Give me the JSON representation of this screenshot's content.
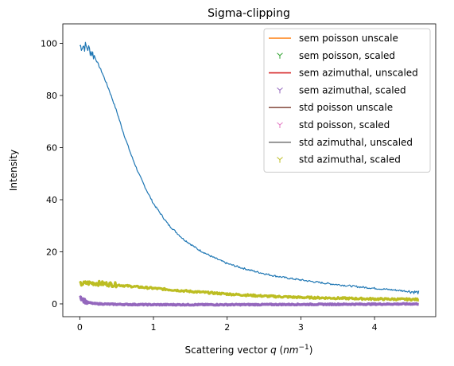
{
  "chart_data": {
    "type": "line",
    "title": "Sigma-clipping",
    "xlabel": "Scattering vector q (nm⁻¹)",
    "xlabel_parts": {
      "prefix": "Scattering vector ",
      "var": "q",
      "unit_open": " (",
      "unit": "nm",
      "unit_exp": "−1",
      "unit_close": ")"
    },
    "ylabel": "Intensity",
    "xlim": [
      -0.23,
      4.83
    ],
    "ylim": [
      -4.9,
      107.5
    ],
    "xticks": [
      0,
      1,
      2,
      3,
      4
    ],
    "xtick_labels": [
      "0",
      "1",
      "2",
      "3",
      "4"
    ],
    "yticks": [
      0,
      20,
      40,
      60,
      80,
      100
    ],
    "ytick_labels": [
      "0",
      "20",
      "40",
      "60",
      "80",
      "100"
    ],
    "grid": false,
    "legend_position": "top-right",
    "legend": [
      {
        "label": "sem poisson unscale",
        "color": "#ff7f0e",
        "marker": "line"
      },
      {
        "label": "sem poisson, scaled",
        "color": "#2ca02c",
        "marker": "tri_down"
      },
      {
        "label": "sem azimuthal, unscaled",
        "color": "#d62728",
        "marker": "line"
      },
      {
        "label": "sem azimuthal, scaled",
        "color": "#9467bd",
        "marker": "tri_down"
      },
      {
        "label": "std poisson unscale",
        "color": "#8c564b",
        "marker": "line"
      },
      {
        "label": "std poisson, scaled",
        "color": "#e377c2",
        "marker": "tri_down"
      },
      {
        "label": "std azimuthal, unscaled",
        "color": "#7f7f7f",
        "marker": "line"
      },
      {
        "label": "std azimuthal, scaled",
        "color": "#bcbd22",
        "marker": "tri_down"
      }
    ],
    "series": [
      {
        "color": "#1f77b4",
        "x": [
          0.0,
          0.05,
          0.1,
          0.15,
          0.2,
          0.3,
          0.4,
          0.5,
          0.6,
          0.7,
          0.8,
          0.9,
          1.0,
          1.2,
          1.4,
          1.6,
          1.8,
          2.0,
          2.2,
          2.4,
          2.6,
          2.8,
          3.0,
          3.2,
          3.4,
          3.6,
          3.8,
          4.0,
          4.2,
          4.4,
          4.6
        ],
        "y": [
          99,
          99,
          98.5,
          97,
          95,
          89,
          82,
          74,
          65,
          57,
          50,
          44,
          38.5,
          30.5,
          25,
          21,
          18,
          15.5,
          13.8,
          12.3,
          11,
          10,
          9.2,
          8.4,
          7.7,
          7.1,
          6.5,
          6.0,
          5.5,
          5.0,
          4.4
        ]
      },
      {
        "color": "#bcbd22",
        "x": [
          0.0,
          0.1,
          0.2,
          0.4,
          0.6,
          0.8,
          1.0,
          1.5,
          2.0,
          2.5,
          3.0,
          3.5,
          4.0,
          4.6
        ],
        "y": [
          7.5,
          8.0,
          8.0,
          7.6,
          7.0,
          6.5,
          6.0,
          4.8,
          3.8,
          3.0,
          2.5,
          2.2,
          1.9,
          1.7
        ]
      },
      {
        "color": "#9467bd",
        "x": [
          0.0,
          0.05,
          0.1,
          0.2,
          0.4,
          0.6,
          1.0,
          1.5,
          2.0,
          3.0,
          4.0,
          4.6
        ],
        "y": [
          3.0,
          1.5,
          0.6,
          0.1,
          -0.1,
          -0.2,
          -0.3,
          -0.3,
          -0.3,
          -0.2,
          -0.1,
          0.0
        ]
      }
    ]
  }
}
